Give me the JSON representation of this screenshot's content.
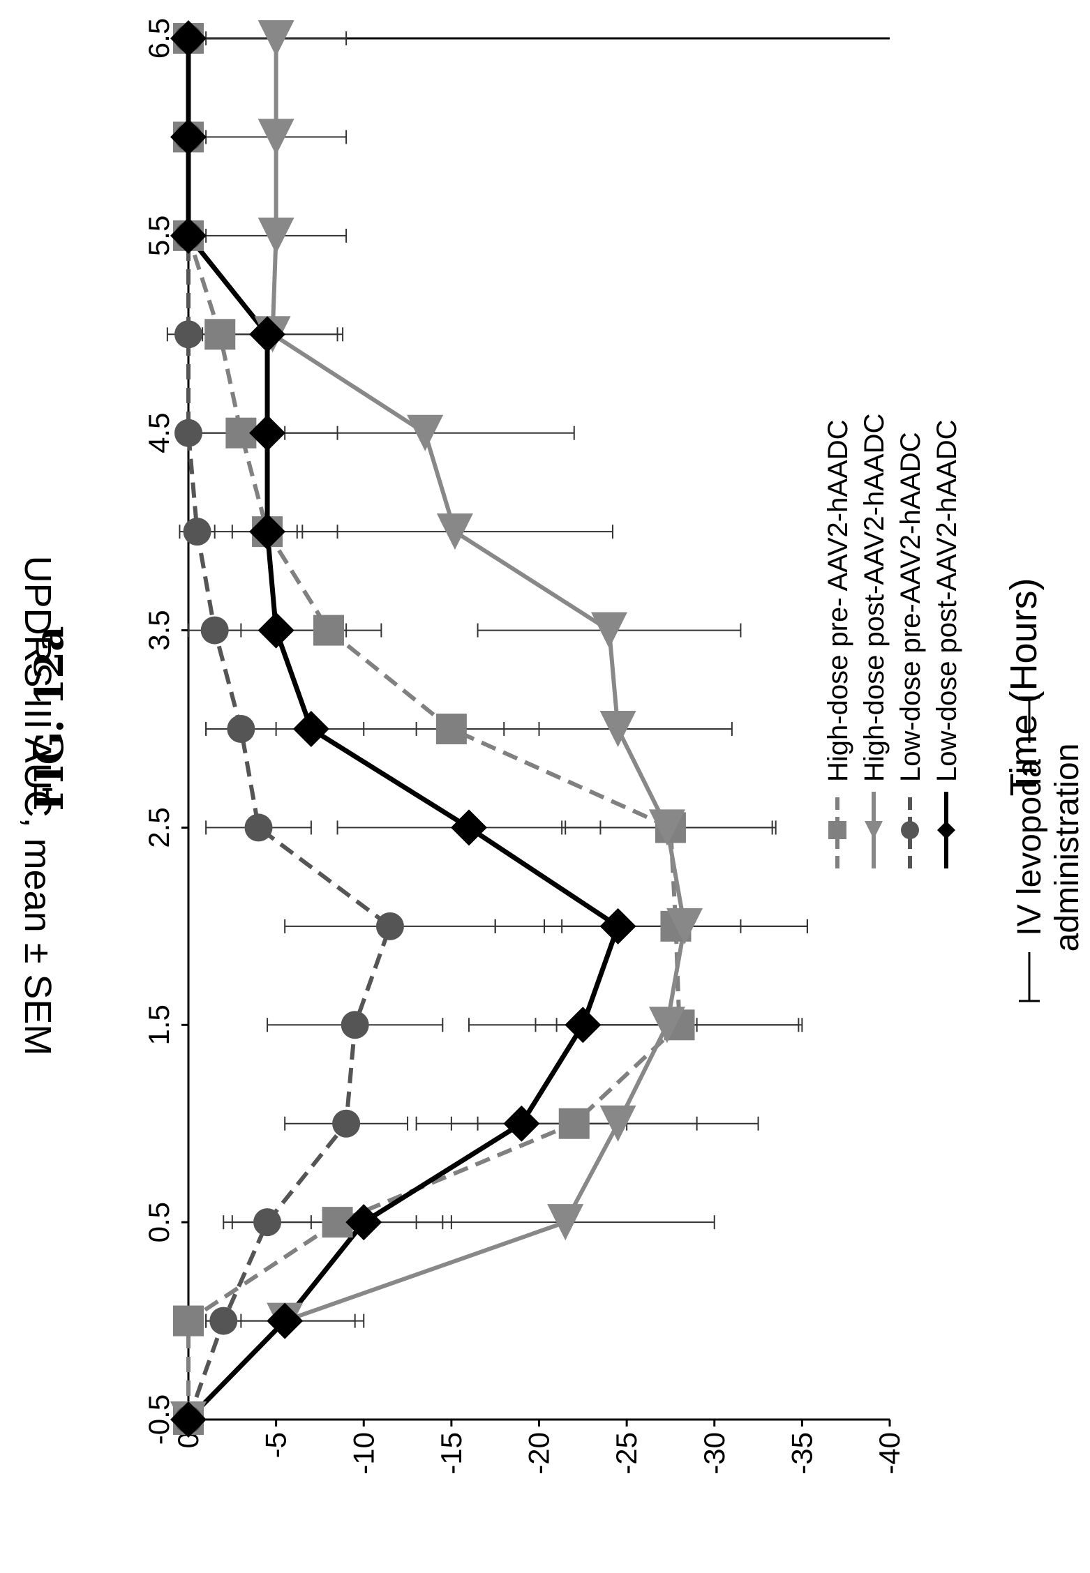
{
  "figure_title": "FIG. 12a",
  "annotation": {
    "line1": "IV levopoda",
    "line2": "administration"
  },
  "chart_data": {
    "type": "line",
    "title": "",
    "xlabel": "Time (Hours)",
    "ylabel": "UPDRS III AUC, mean ± SEM",
    "xlim": [
      -0.5,
      6.5
    ],
    "ylim": [
      0,
      -40
    ],
    "x_ticks": [
      "-0.5",
      "0.5",
      "1.5",
      "2.5",
      "3.5",
      "4.5",
      "5.5",
      "6.5"
    ],
    "y_ticks": [
      "0",
      "-5",
      "-10",
      "-15",
      "-20",
      "-25",
      "-30",
      "-35",
      "-40"
    ],
    "x": [
      -0.5,
      0,
      0.5,
      1,
      1.5,
      2,
      2.5,
      3,
      3.5,
      4,
      4.5,
      5,
      5.5,
      6,
      6.5
    ],
    "legend_position": "top-right",
    "grid": false,
    "series": [
      {
        "name": "High-dose pre- AAV2-hAADC",
        "color": "#808080",
        "line": "dashed",
        "marker": "square",
        "values": [
          0,
          0,
          -8.5,
          -22,
          -28,
          -27.8,
          -27.5,
          -15,
          -8,
          -4.5,
          -3,
          -1.8,
          0,
          0,
          0
        ],
        "errors": [
          0,
          0,
          6,
          7,
          7,
          7.5,
          6,
          5,
          3,
          2,
          2.5,
          3,
          0,
          0,
          0
        ]
      },
      {
        "name": "High-dose post-AAV2-hAADC",
        "color": "#888888",
        "line": "solid",
        "marker": "triangle",
        "values": [
          0,
          -5.5,
          -21.5,
          -24.5,
          -27.3,
          -28.3,
          -27.3,
          -24.5,
          -24,
          -15.2,
          -13.5,
          -4.8,
          -5,
          -5,
          -5
        ],
        "errors": [
          0,
          4.5,
          8.5,
          8,
          7.5,
          7,
          6,
          6.5,
          7.5,
          9,
          8.5,
          4,
          4,
          4,
          4
        ]
      },
      {
        "name": "Low-dose pre-AAV2-hAADC",
        "color": "#555555",
        "line": "dashed",
        "marker": "circle",
        "values": [
          0,
          -2,
          -4.5,
          -9,
          -9.5,
          -11.5,
          -4,
          -3,
          -1.5,
          -0.5,
          0,
          0,
          0,
          0,
          0
        ],
        "errors": [
          0,
          1,
          2.5,
          3.5,
          5,
          6,
          3,
          2,
          1.5,
          1,
          0.5,
          0.5,
          0,
          0,
          0
        ]
      },
      {
        "name": "Low-dose post-AAV2-hAADC",
        "color": "#000000",
        "line": "solid",
        "marker": "diamond",
        "values": [
          0,
          -5.5,
          -10,
          -19,
          -22.5,
          -24.5,
          -16,
          -7,
          -5,
          -4.5,
          -4.5,
          -4.5,
          0,
          0,
          0
        ],
        "errors": [
          0,
          4,
          5,
          6,
          6.5,
          7,
          7.5,
          6,
          4,
          4,
          4,
          4,
          0,
          0,
          0
        ]
      }
    ]
  }
}
